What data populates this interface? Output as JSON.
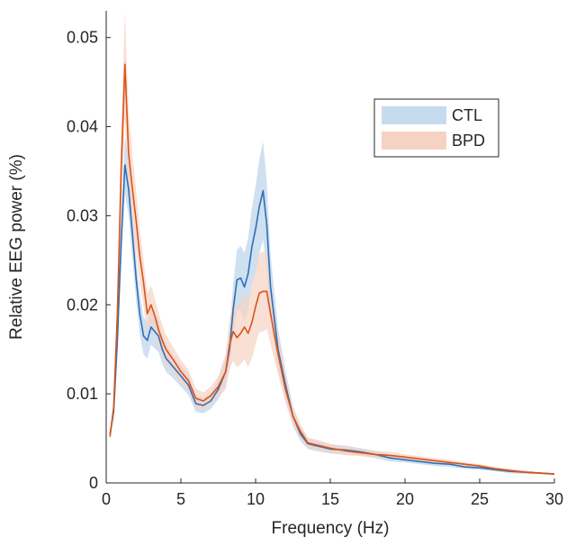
{
  "chart_data": {
    "type": "line",
    "title": "",
    "xlabel": "Frequency (Hz)",
    "ylabel": "Relative EEG power (%)",
    "xlim": [
      0,
      30
    ],
    "ylim": [
      0,
      0.053
    ],
    "xticks": [
      0,
      5,
      10,
      15,
      20,
      25,
      30
    ],
    "xtick_labels": [
      "0",
      "5",
      "10",
      "15",
      "20",
      "25",
      "30"
    ],
    "yticks": [
      0,
      0.01,
      0.02,
      0.03,
      0.04,
      0.05
    ],
    "ytick_labels": [
      "0",
      "0.01",
      "0.02",
      "0.03",
      "0.04",
      "0.05"
    ],
    "grid": false,
    "legend_position": "top-right",
    "series": [
      {
        "name": "CTL",
        "color": "#2f6fb5",
        "band_color": "#c7dbee",
        "x": [
          0.25,
          0.5,
          0.75,
          1.0,
          1.25,
          1.5,
          1.75,
          2.0,
          2.25,
          2.5,
          2.75,
          3.0,
          3.25,
          3.5,
          3.75,
          4.0,
          4.5,
          5.0,
          5.5,
          6.0,
          6.5,
          7.0,
          7.5,
          8.0,
          8.25,
          8.5,
          8.75,
          9.0,
          9.25,
          9.5,
          9.75,
          10.0,
          10.25,
          10.5,
          10.75,
          11.0,
          11.5,
          12.0,
          12.5,
          13.0,
          13.5,
          14.0,
          15.0,
          16.0,
          17.0,
          18.0,
          19.0,
          20.0,
          21.0,
          22.0,
          23.0,
          24.0,
          25.0,
          26.0,
          27.0,
          28.0,
          29.0,
          30.0
        ],
        "values": [
          0.0055,
          0.008,
          0.016,
          0.027,
          0.0357,
          0.033,
          0.028,
          0.023,
          0.019,
          0.0165,
          0.016,
          0.0175,
          0.017,
          0.0165,
          0.015,
          0.014,
          0.013,
          0.012,
          0.011,
          0.0089,
          0.0087,
          0.0092,
          0.0105,
          0.0125,
          0.015,
          0.0195,
          0.0228,
          0.023,
          0.022,
          0.0235,
          0.0265,
          0.0285,
          0.031,
          0.0328,
          0.029,
          0.022,
          0.015,
          0.011,
          0.0075,
          0.0055,
          0.0044,
          0.0042,
          0.0038,
          0.0037,
          0.0035,
          0.0032,
          0.0028,
          0.0026,
          0.0024,
          0.0022,
          0.0021,
          0.0018,
          0.0017,
          0.0015,
          0.0013,
          0.0012,
          0.0011,
          0.001
        ],
        "band": [
          0.0005,
          0.0008,
          0.0018,
          0.0028,
          0.0032,
          0.003,
          0.0028,
          0.0025,
          0.0023,
          0.0021,
          0.002,
          0.002,
          0.0019,
          0.0018,
          0.0016,
          0.0015,
          0.0013,
          0.0012,
          0.0011,
          0.0009,
          0.0009,
          0.0009,
          0.0011,
          0.0016,
          0.002,
          0.0028,
          0.0034,
          0.0036,
          0.0038,
          0.004,
          0.0044,
          0.0048,
          0.0053,
          0.0055,
          0.0048,
          0.0036,
          0.0024,
          0.0016,
          0.0011,
          0.0008,
          0.0006,
          0.0006,
          0.0005,
          0.0005,
          0.0004,
          0.0004,
          0.0004,
          0.0003,
          0.0003,
          0.0003,
          0.0003,
          0.0002,
          0.0002,
          0.0002,
          0.0002,
          0.0002,
          0.0001,
          0.0001
        ]
      },
      {
        "name": "BPD",
        "color": "#d95319",
        "band_color": "#f6d2c2",
        "x": [
          0.25,
          0.5,
          0.75,
          1.0,
          1.25,
          1.5,
          1.75,
          2.0,
          2.25,
          2.5,
          2.75,
          3.0,
          3.25,
          3.5,
          3.75,
          4.0,
          4.5,
          5.0,
          5.5,
          6.0,
          6.5,
          7.0,
          7.5,
          8.0,
          8.25,
          8.5,
          8.75,
          9.0,
          9.25,
          9.5,
          9.75,
          10.0,
          10.25,
          10.5,
          10.75,
          11.0,
          11.5,
          12.0,
          12.5,
          13.0,
          13.5,
          14.0,
          15.0,
          16.0,
          17.0,
          18.0,
          19.0,
          20.0,
          21.0,
          22.0,
          23.0,
          24.0,
          25.0,
          26.0,
          27.0,
          28.0,
          29.0,
          30.0
        ],
        "values": [
          0.0052,
          0.0085,
          0.019,
          0.035,
          0.047,
          0.037,
          0.033,
          0.0295,
          0.0255,
          0.0225,
          0.019,
          0.02,
          0.0188,
          0.0172,
          0.016,
          0.015,
          0.0138,
          0.0125,
          0.0115,
          0.0095,
          0.0092,
          0.0098,
          0.0108,
          0.0125,
          0.0155,
          0.017,
          0.0163,
          0.0168,
          0.0175,
          0.0168,
          0.018,
          0.0198,
          0.0213,
          0.0215,
          0.0215,
          0.019,
          0.0145,
          0.0105,
          0.0075,
          0.0058,
          0.0045,
          0.0043,
          0.0039,
          0.0036,
          0.0034,
          0.0032,
          0.0031,
          0.0029,
          0.0027,
          0.0025,
          0.0023,
          0.0021,
          0.0019,
          0.0016,
          0.0014,
          0.0012,
          0.0011,
          0.001
        ],
        "band": [
          0.0005,
          0.0009,
          0.0022,
          0.0045,
          0.006,
          0.0048,
          0.004,
          0.0035,
          0.003,
          0.0026,
          0.0022,
          0.0022,
          0.002,
          0.0019,
          0.0017,
          0.0016,
          0.0014,
          0.0013,
          0.0012,
          0.0011,
          0.001,
          0.001,
          0.0012,
          0.002,
          0.0028,
          0.0033,
          0.0033,
          0.0035,
          0.0036,
          0.0038,
          0.004,
          0.0042,
          0.0044,
          0.0045,
          0.0042,
          0.0034,
          0.0023,
          0.0015,
          0.0011,
          0.0008,
          0.0006,
          0.0006,
          0.0005,
          0.0005,
          0.0004,
          0.0004,
          0.0004,
          0.0003,
          0.0003,
          0.0003,
          0.0003,
          0.0002,
          0.0002,
          0.0002,
          0.0002,
          0.0002,
          0.0001,
          0.0001
        ]
      }
    ]
  }
}
